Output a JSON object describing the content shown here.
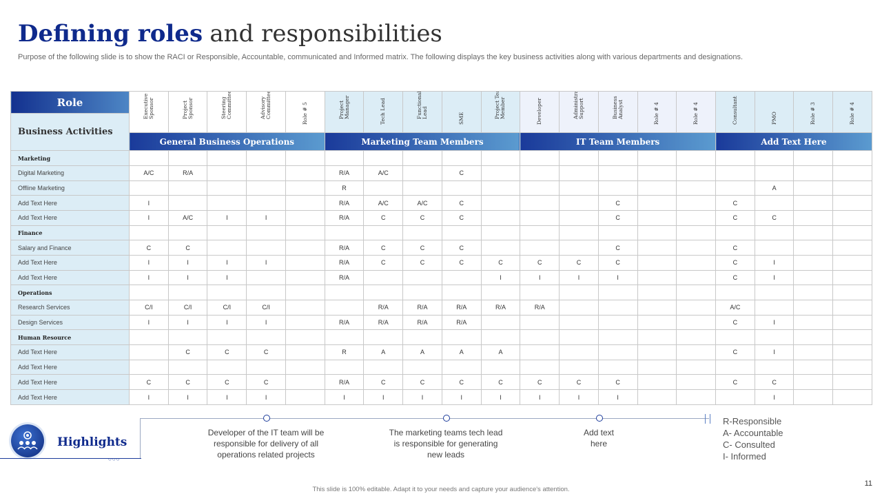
{
  "title": {
    "bold": "Defining roles",
    "normal": "and responsibilities"
  },
  "subtitle": "Purpose of the following slide is to show the RACI or Responsible, Accountable, communicated and Informed matrix. The following displays the key business activities along with various departments and designations.",
  "table": {
    "role_label": "Role",
    "activities_label": "Business Activities",
    "columns": [
      "Executive Sponsor",
      "Project Sponsor",
      "Steering Committee",
      "Advisory Committee",
      "Role # 5",
      "Project Manager",
      "Tech Lead",
      "Functional Lead",
      "SME",
      "Project Team Member",
      "Developer",
      "Administrative Support",
      "Business Analyst",
      "Role # 4",
      "Role # 4",
      "Consultant",
      "PMO",
      "Role # 3",
      "Role # 4"
    ],
    "groups": [
      "General Business Operations",
      "Marketing Team Members",
      "IT  Team Members",
      "Add Text Here"
    ],
    "rows": [
      {
        "label": "Marketing",
        "category": true,
        "cells": [
          "",
          "",
          "",
          "",
          "",
          "",
          "",
          "",
          "",
          "",
          "",
          "",
          "",
          "",
          "",
          "",
          "",
          "",
          ""
        ]
      },
      {
        "label": "Digital Marketing",
        "category": false,
        "cells": [
          "A/C",
          "R/A",
          "",
          "",
          "",
          "R/A",
          "A/C",
          "",
          "C",
          "",
          "",
          "",
          "",
          "",
          "",
          "",
          "",
          "",
          ""
        ]
      },
      {
        "label": "Offline Marketing",
        "category": false,
        "cells": [
          "",
          "",
          "",
          "",
          "",
          "R",
          "",
          "",
          "",
          "",
          "",
          "",
          "",
          "",
          "",
          "",
          "A",
          "",
          ""
        ]
      },
      {
        "label": "Add Text Here",
        "category": false,
        "cells": [
          "I",
          "",
          "",
          "",
          "",
          "R/A",
          "A/C",
          "A/C",
          "C",
          "",
          "",
          "",
          "C",
          "",
          "",
          "C",
          "",
          "",
          ""
        ]
      },
      {
        "label": "Add Text Here",
        "category": false,
        "cells": [
          "I",
          "A/C",
          "I",
          "I",
          "",
          "R/A",
          "C",
          "C",
          "C",
          "",
          "",
          "",
          "C",
          "",
          "",
          "C",
          "C",
          "",
          ""
        ]
      },
      {
        "label": "Finance",
        "category": true,
        "cells": [
          "",
          "",
          "",
          "",
          "",
          "",
          "",
          "",
          "",
          "",
          "",
          "",
          "",
          "",
          "",
          "",
          "",
          "",
          ""
        ]
      },
      {
        "label": "Salary and Finance",
        "category": false,
        "cells": [
          "C",
          "C",
          "",
          "",
          "",
          "R/A",
          "C",
          "C",
          "C",
          "",
          "",
          "",
          "C",
          "",
          "",
          "C",
          "",
          "",
          ""
        ]
      },
      {
        "label": "Add Text Here",
        "category": false,
        "cells": [
          "I",
          "I",
          "I",
          "I",
          "",
          "R/A",
          "C",
          "C",
          "C",
          "C",
          "C",
          "C",
          "C",
          "",
          "",
          "C",
          "I",
          "",
          ""
        ]
      },
      {
        "label": "Add Text Here",
        "category": false,
        "cells": [
          "I",
          "I",
          "I",
          "",
          "",
          "R/A",
          "",
          "",
          "",
          "I",
          "I",
          "I",
          "I",
          "",
          "",
          "C",
          "I",
          "",
          ""
        ]
      },
      {
        "label": "Operations",
        "category": true,
        "cells": [
          "",
          "",
          "",
          "",
          "",
          "",
          "",
          "",
          "",
          "",
          "",
          "",
          "",
          "",
          "",
          "",
          "",
          "",
          ""
        ]
      },
      {
        "label": "Research Services",
        "category": false,
        "cells": [
          "C/I",
          "C/I",
          "C/I",
          "C/I",
          "",
          "",
          "R/A",
          "R/A",
          "R/A",
          "R/A",
          "R/A",
          "",
          "",
          "",
          "",
          "A/C",
          "",
          "",
          ""
        ]
      },
      {
        "label": "Design Services",
        "category": false,
        "cells": [
          "I",
          "I",
          "I",
          "I",
          "",
          "R/A",
          "R/A",
          "R/A",
          "R/A",
          "",
          "",
          "",
          "",
          "",
          "",
          "C",
          "I",
          "",
          ""
        ]
      },
      {
        "label": "Human Resource",
        "category": true,
        "cells": [
          "",
          "",
          "",
          "",
          "",
          "",
          "",
          "",
          "",
          "",
          "",
          "",
          "",
          "",
          "",
          "",
          "",
          "",
          ""
        ]
      },
      {
        "label": "Add Text Here",
        "category": false,
        "cells": [
          "",
          "C",
          "C",
          "C",
          "",
          "R",
          "A",
          "A",
          "A",
          "A",
          "",
          "",
          "",
          "",
          "",
          "C",
          "I",
          "",
          ""
        ]
      },
      {
        "label": "Add Text Here",
        "category": false,
        "cells": [
          "",
          "",
          "",
          "",
          "",
          "",
          "",
          "",
          "",
          "",
          "",
          "",
          "",
          "",
          "",
          "",
          "",
          "",
          ""
        ]
      },
      {
        "label": "Add Text Here",
        "category": false,
        "cells": [
          "C",
          "C",
          "C",
          "C",
          "",
          "R/A",
          "C",
          "C",
          "C",
          "C",
          "C",
          "C",
          "C",
          "",
          "",
          "C",
          "C",
          "",
          ""
        ]
      },
      {
        "label": "Add Text Here",
        "category": false,
        "cells": [
          "I",
          "I",
          "I",
          "I",
          "",
          "I",
          "I",
          "I",
          "I",
          "I",
          "I",
          "I",
          "I",
          "",
          "",
          "",
          "I",
          "",
          ""
        ]
      }
    ]
  },
  "highlights": {
    "title": "Highlights",
    "icon": "team-gear-icon",
    "items": [
      "Developer  of the IT team will be responsible for delivery of all operations related projects",
      "The marketing teams tech lead is responsible for generating new leads",
      "Add text here"
    ]
  },
  "legend": [
    "R-Responsible",
    "A- Accountable",
    "C- Consulted",
    "I- Informed"
  ],
  "footer": "This slide is 100% editable. Adapt it to your needs and capture your audience's attention.",
  "page_number": "11",
  "colors": {
    "primary": "#0f2a8c",
    "light_blue": "#dcedf6",
    "lavender": "#eef2fb"
  }
}
